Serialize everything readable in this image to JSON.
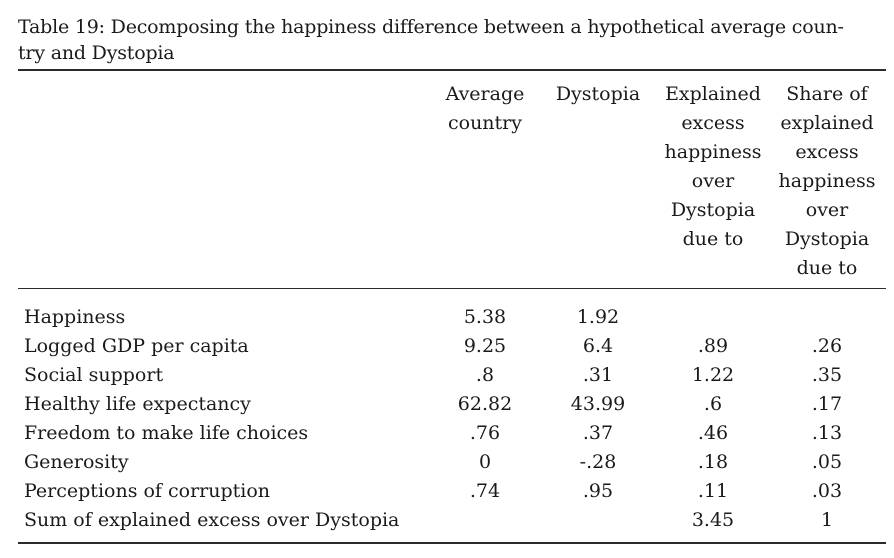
{
  "caption": {
    "line1": "Table 19: Decomposing the happiness difference between a hypothetical average coun-",
    "line2": "try and Dystopia"
  },
  "headers": [
    {
      "key": "avg",
      "lines": [
        "Average",
        "country"
      ]
    },
    {
      "key": "dys",
      "lines": [
        "Dystopia"
      ]
    },
    {
      "key": "exp",
      "lines": [
        "Explained",
        "excess",
        "happiness",
        "over",
        "Dystopia",
        "due to"
      ]
    },
    {
      "key": "share",
      "lines": [
        "Share of",
        "explained",
        "excess",
        "happiness",
        "over",
        "Dystopia",
        "due to"
      ]
    }
  ],
  "rows": [
    {
      "label": "Happiness",
      "avg": "5.38",
      "dys": "1.92",
      "exp": "",
      "share": ""
    },
    {
      "label": "Logged GDP per capita",
      "avg": "9.25",
      "dys": "6.4",
      "exp": ".89",
      "share": ".26"
    },
    {
      "label": "Social support",
      "avg": ".8",
      "dys": ".31",
      "exp": "1.22",
      "share": ".35"
    },
    {
      "label": "Healthy life expectancy",
      "avg": "62.82",
      "dys": "43.99",
      "exp": ".6",
      "share": ".17"
    },
    {
      "label": "Freedom to make life choices",
      "avg": ".76",
      "dys": ".37",
      "exp": ".46",
      "share": ".13"
    },
    {
      "label": "Generosity",
      "avg": "0",
      "dys": "-.28",
      "exp": ".18",
      "share": ".05"
    },
    {
      "label": "Perceptions of corruption",
      "avg": ".74",
      "dys": ".95",
      "exp": ".11",
      "share": ".03"
    },
    {
      "label": "Sum of explained excess over Dystopia",
      "avg": "",
      "dys": "",
      "exp": "3.45",
      "share": "1"
    }
  ]
}
